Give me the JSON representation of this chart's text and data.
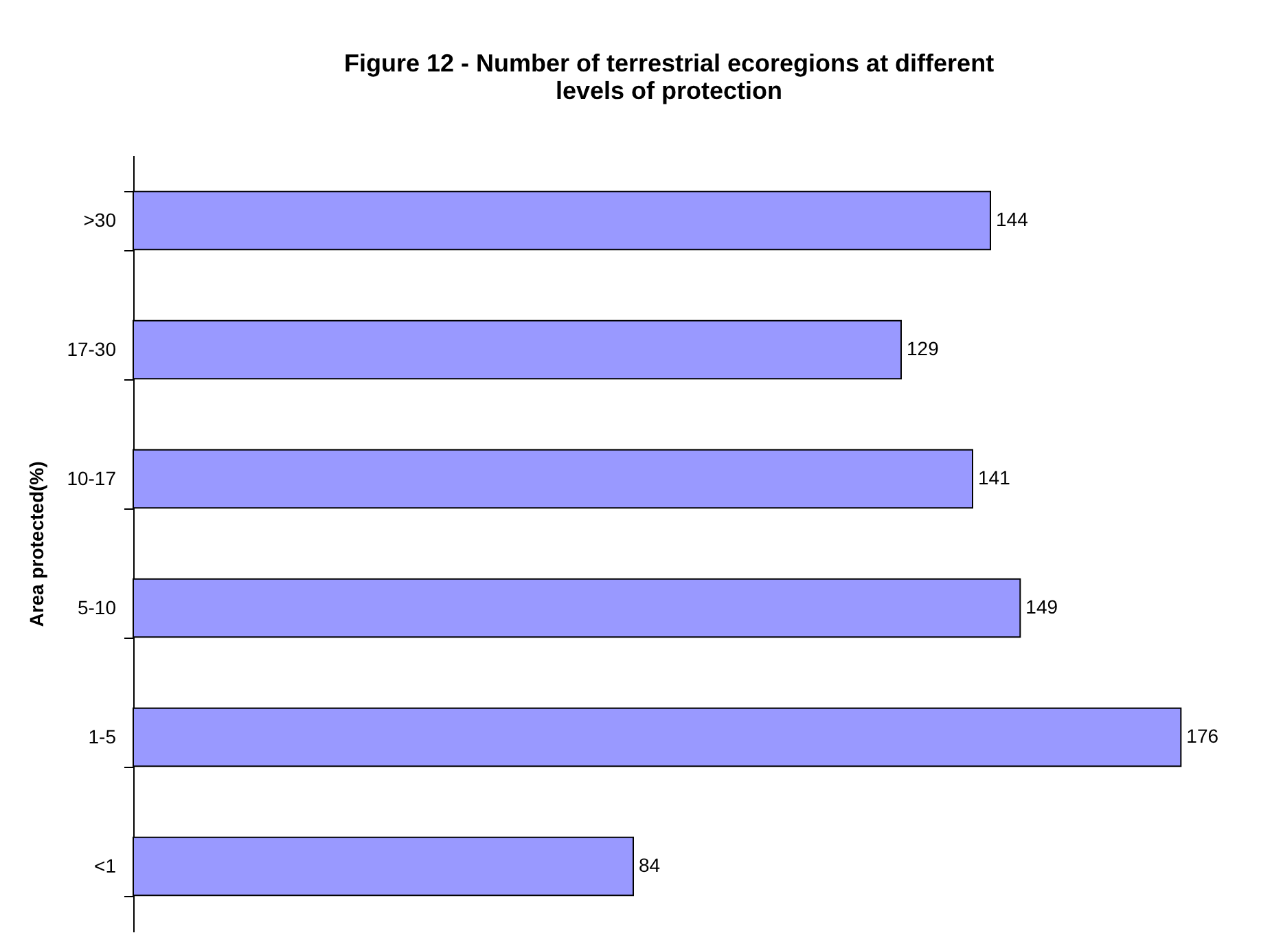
{
  "chart_data": {
    "type": "bar",
    "orientation": "horizontal",
    "title": "Figure 12 - Number of terrestrial ecoregions at different levels of protection",
    "ylabel": "Area protected(%)",
    "categories": [
      ">30",
      "17-30",
      "10-17",
      "5-10",
      "1-5",
      "<1"
    ],
    "values": [
      144,
      129,
      141,
      149,
      176,
      84
    ],
    "color": "#9999ff",
    "data_labels": true,
    "tick_labels": "y",
    "grid": false
  }
}
